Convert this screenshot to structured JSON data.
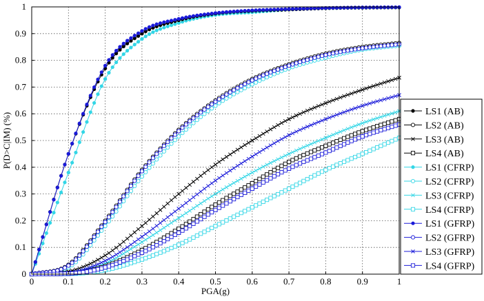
{
  "chart_data": {
    "type": "line",
    "title": "",
    "xlabel": "PGA(g)",
    "ylabel": "P(D>C|IM) (%)",
    "xlim": [
      0,
      1
    ],
    "ylim": [
      0,
      1
    ],
    "x_ticks": [
      "0",
      "0.1",
      "0.2",
      "0.3",
      "0.4",
      "0.5",
      "0.6",
      "0.7",
      "0.8",
      "0.9",
      "1"
    ],
    "y_ticks": [
      "0",
      "0.1",
      "0.2",
      "0.3",
      "0.4",
      "0.5",
      "0.6",
      "0.7",
      "0.8",
      "0.9",
      "1"
    ],
    "grid": true,
    "grid_style": "dotted",
    "legend_position": "right",
    "x": [
      0,
      0.1,
      0.2,
      0.3,
      0.4,
      0.5,
      0.6,
      0.7,
      0.8,
      0.9,
      1.0
    ],
    "series": [
      {
        "name": "LS1 (AB)",
        "color": "#000000",
        "marker": "dot",
        "values": [
          0,
          0.45,
          0.77,
          0.9,
          0.95,
          0.975,
          0.985,
          0.99,
          0.995,
          0.997,
          0.998
        ]
      },
      {
        "name": "LS2 (AB)",
        "color": "#000000",
        "marker": "circle",
        "values": [
          0,
          0.035,
          0.2,
          0.39,
          0.54,
          0.65,
          0.73,
          0.785,
          0.825,
          0.85,
          0.865
        ]
      },
      {
        "name": "LS3 (AB)",
        "color": "#000000",
        "marker": "x",
        "values": [
          0,
          0.01,
          0.07,
          0.18,
          0.3,
          0.41,
          0.5,
          0.58,
          0.64,
          0.69,
          0.735
        ]
      },
      {
        "name": "LS4 (AB)",
        "color": "#000000",
        "marker": "square",
        "values": [
          0,
          0.002,
          0.03,
          0.09,
          0.17,
          0.26,
          0.34,
          0.42,
          0.48,
          0.535,
          0.58
        ]
      },
      {
        "name": "LS1 (CFRP)",
        "color": "#33d6e6",
        "marker": "dot",
        "values": [
          0,
          0.38,
          0.73,
          0.88,
          0.94,
          0.97,
          0.98,
          0.99,
          0.995,
          0.997,
          0.998
        ]
      },
      {
        "name": "LS2 (CFRP)",
        "color": "#33d6e6",
        "marker": "circle",
        "values": [
          0,
          0.025,
          0.18,
          0.365,
          0.515,
          0.63,
          0.71,
          0.77,
          0.81,
          0.84,
          0.855
        ]
      },
      {
        "name": "LS3 (CFRP)",
        "color": "#33d6e6",
        "marker": "x",
        "values": [
          0,
          0.003,
          0.04,
          0.12,
          0.21,
          0.3,
          0.38,
          0.45,
          0.51,
          0.565,
          0.61
        ]
      },
      {
        "name": "LS4 (CFRP)",
        "color": "#33d6e6",
        "marker": "square",
        "values": [
          0,
          0.001,
          0.015,
          0.055,
          0.11,
          0.18,
          0.25,
          0.32,
          0.39,
          0.45,
          0.51
        ]
      },
      {
        "name": "LS1 (GFRP)",
        "color": "#1a1ad9",
        "marker": "dot",
        "values": [
          0,
          0.45,
          0.78,
          0.91,
          0.955,
          0.977,
          0.987,
          0.992,
          0.996,
          0.998,
          0.999
        ]
      },
      {
        "name": "LS2 (GFRP)",
        "color": "#1a1ad9",
        "marker": "circle",
        "values": [
          0,
          0.032,
          0.195,
          0.385,
          0.535,
          0.645,
          0.725,
          0.78,
          0.82,
          0.845,
          0.86
        ]
      },
      {
        "name": "LS3 (GFRP)",
        "color": "#1a1ad9",
        "marker": "x",
        "values": [
          0,
          0.005,
          0.05,
          0.14,
          0.245,
          0.35,
          0.44,
          0.52,
          0.58,
          0.63,
          0.67
        ]
      },
      {
        "name": "LS4 (GFRP)",
        "color": "#1a1ad9",
        "marker": "square",
        "values": [
          0,
          0.002,
          0.025,
          0.08,
          0.155,
          0.24,
          0.32,
          0.395,
          0.455,
          0.515,
          0.56
        ]
      }
    ]
  }
}
